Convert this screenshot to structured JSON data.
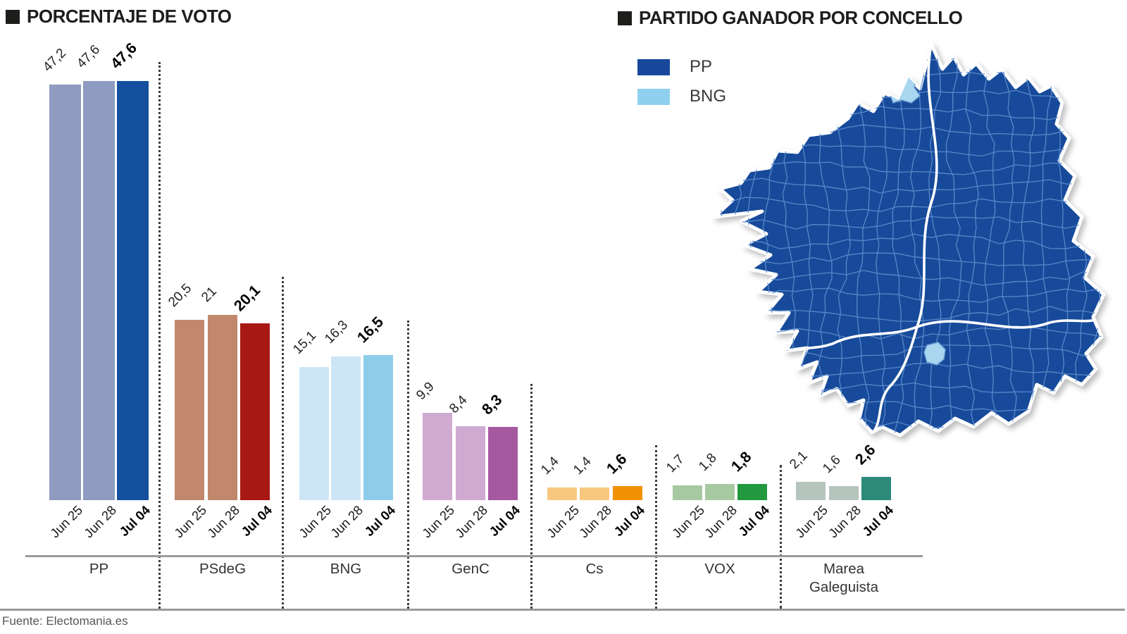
{
  "titles": {
    "left": "PORCENTAJE DE VOTO",
    "right": "PARTIDO GANADOR POR CONCELLO"
  },
  "legend": {
    "items": [
      {
        "label": "PP",
        "color": "#17489c"
      },
      {
        "label": "BNG",
        "color": "#8fd0ef"
      }
    ]
  },
  "chart_data": {
    "type": "bar",
    "categories": [
      "Jun 25",
      "Jun 28",
      "Jul 04"
    ],
    "highlight_category": "Jul 04",
    "unit": "% of vote",
    "ylim": [
      0,
      50
    ],
    "groups": [
      {
        "party": "PP",
        "values": [
          47.2,
          47.6,
          47.6
        ],
        "display": [
          "47,2",
          "47,6",
          "47,6"
        ],
        "color_prev": "#8f9bc0",
        "color_final": "#14509e"
      },
      {
        "party": "PSdeG",
        "values": [
          20.5,
          21.0,
          20.1
        ],
        "display": [
          "20,5",
          "21",
          "20,1"
        ],
        "color_prev": "#c1886d",
        "color_final": "#a81815"
      },
      {
        "party": "BNG",
        "values": [
          15.1,
          16.3,
          16.5
        ],
        "display": [
          "15,1",
          "16,3",
          "16,5"
        ],
        "color_prev": "#cde6f5",
        "color_final": "#8ecdea"
      },
      {
        "party": "GenC",
        "values": [
          9.9,
          8.4,
          8.3
        ],
        "display": [
          "9,9",
          "8,4",
          "8,3"
        ],
        "color_prev": "#cfabd2",
        "color_final": "#a55aa0"
      },
      {
        "party": "Cs",
        "values": [
          1.4,
          1.4,
          1.6
        ],
        "display": [
          "1,4",
          "1,4",
          "1,6"
        ],
        "color_prev": "#f8c87e",
        "color_final": "#f29104"
      },
      {
        "party": "VOX",
        "values": [
          1.7,
          1.8,
          1.8
        ],
        "display": [
          "1,7",
          "1,8",
          "1,8"
        ],
        "color_prev": "#a7c9a1",
        "color_final": "#22993f"
      },
      {
        "party": "Marea Galeguista",
        "values": [
          2.1,
          1.6,
          2.6
        ],
        "display": [
          "2,1",
          "1,6",
          "2,6"
        ],
        "color_prev": "#b5c5bd",
        "color_final": "#2b8a78"
      }
    ]
  },
  "map": {
    "winner_colors": {
      "PP": "#174a9a",
      "BNG": "#a9d7f0"
    }
  },
  "footer": {
    "source": "Fuente: Electomania.es"
  }
}
